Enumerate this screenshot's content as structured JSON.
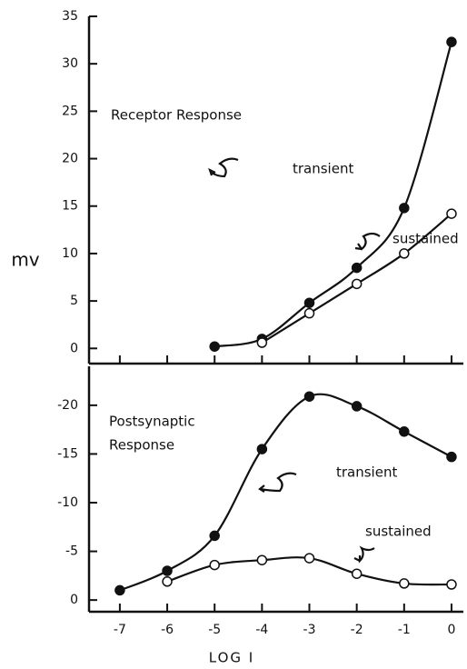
{
  "chart_data": [
    {
      "type": "line",
      "title": "Receptor Response",
      "y_label": "mv",
      "annotations": [
        "transient",
        "sustained"
      ],
      "xlim": [
        -7.65,
        0.25
      ],
      "xticks": [
        -7,
        -6,
        -5,
        -4,
        -3,
        -2,
        -1,
        0
      ],
      "ylim": [
        -1.6,
        35
      ],
      "yticks": [
        0,
        5,
        10,
        15,
        20,
        25,
        30,
        35
      ],
      "series": [
        {
          "name": "transient",
          "marker": "filled",
          "x": [
            -5,
            -4,
            -3,
            -2,
            -1,
            0
          ],
          "values": [
            0.2,
            1.0,
            4.8,
            8.5,
            14.8,
            32.3
          ]
        },
        {
          "name": "sustained",
          "marker": "open",
          "x": [
            -4,
            -3,
            -2,
            -1,
            0
          ],
          "values": [
            0.6,
            3.7,
            6.8,
            10,
            14.2
          ]
        }
      ]
    },
    {
      "type": "line",
      "title": [
        "Postsynaptic",
        "Response"
      ],
      "x_label": "LOG I",
      "annotations": [
        "transient",
        "sustained"
      ],
      "xlim": [
        -7.65,
        0.25
      ],
      "xticks": [
        -7,
        -6,
        -5,
        -4,
        -3,
        -2,
        -1,
        0
      ],
      "ylim": [
        1.2,
        -24
      ],
      "yticks": [
        0,
        -5,
        -10,
        -15,
        -20
      ],
      "series": [
        {
          "name": "transient",
          "marker": "filled",
          "x": [
            -7,
            -6,
            -5,
            -4,
            -3,
            -2,
            -1,
            0
          ],
          "values": [
            -1,
            -3,
            -6.6,
            -15.5,
            -20.9,
            -19.9,
            -17.3,
            -14.7
          ]
        },
        {
          "name": "sustained",
          "marker": "open",
          "x": [
            -6,
            -5,
            -4,
            -3,
            -2,
            -1,
            0
          ],
          "values": [
            -1.9,
            -3.6,
            -4.1,
            -4.3,
            -2.7,
            -1.7,
            -1.6
          ]
        }
      ]
    }
  ]
}
